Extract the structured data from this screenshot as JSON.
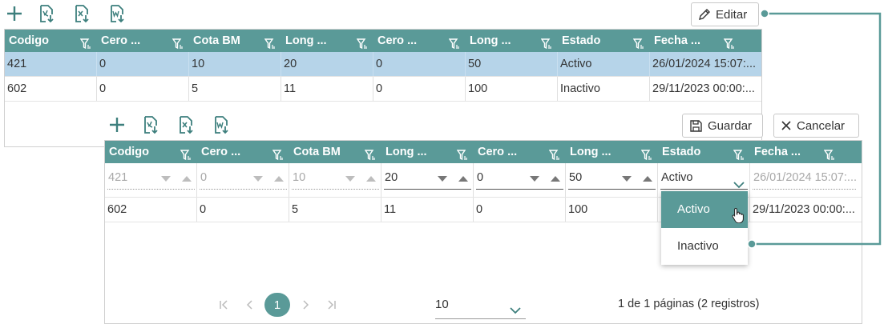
{
  "colors": {
    "accent": "#5a9a98",
    "selected_row": "#b6d4e9",
    "header_text": "#ffffff"
  },
  "top_grid": {
    "toolbar": [
      "add-icon",
      "export-pdf-icon",
      "export-excel-icon",
      "export-word-icon"
    ],
    "edit_label": "Editar",
    "columns": [
      "Codigo",
      "Cero ...",
      "Cota BM",
      "Long ...",
      "Cero ...",
      "Long ...",
      "Estado",
      "Fecha ..."
    ],
    "rows": [
      [
        "421",
        "0",
        "10",
        "20",
        "0",
        "50",
        "Activo",
        "26/01/2024 15:07:..."
      ],
      [
        "602",
        "0",
        "5",
        "11",
        "0",
        "100",
        "Inactivo",
        "29/11/2023 00:00:..."
      ]
    ]
  },
  "bottom_grid": {
    "toolbar": [
      "add-icon",
      "export-pdf-icon",
      "export-excel-icon",
      "export-word-icon"
    ],
    "save_label": "Guardar",
    "cancel_label": "Cancelar",
    "columns": [
      "Codigo",
      "Cero ...",
      "Cota BM",
      "Long ...",
      "Cero ...",
      "Long ...",
      "Estado",
      "Fecha ..."
    ],
    "edit_row": {
      "codigo": "421",
      "cero1": "0",
      "cota": "10",
      "long1": "20",
      "cero2": "0",
      "long2": "50",
      "estado": "Activo",
      "fecha": "26/01/2024 15:07:..."
    },
    "rows": [
      [
        "602",
        "0",
        "5",
        "11",
        "0",
        "100",
        "",
        "29/11/2023 00:00:..."
      ]
    ],
    "estado_options": [
      "Activo",
      "Inactivo"
    ],
    "pager": {
      "current_page": "1",
      "page_size": "10",
      "info": "1 de 1 páginas (2 registros)"
    }
  }
}
